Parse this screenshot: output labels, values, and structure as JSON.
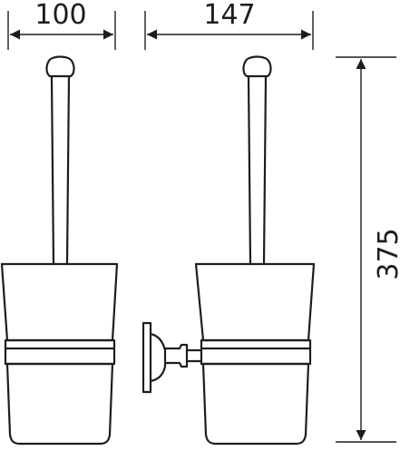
{
  "dimensions": {
    "front_width": "100",
    "side_depth": "147",
    "height": "375"
  },
  "colors": {
    "stroke": "#1d1d1b",
    "background": "#ffffff"
  }
}
